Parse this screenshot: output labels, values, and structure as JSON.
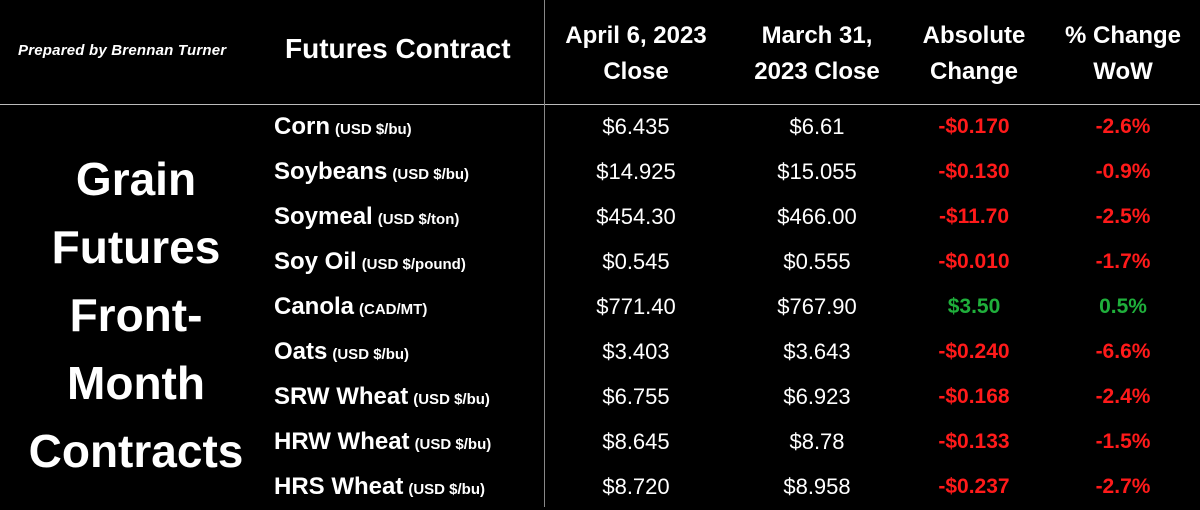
{
  "header": {
    "prepared_by": "Prepared by Brennan Turner",
    "futures_contract": "Futures Contract",
    "col_apr_line1": "April 6, 2023",
    "col_apr_line2": "Close",
    "col_mar_line1": "March 31,",
    "col_mar_line2": "2023 Close",
    "col_abs_line1": "Absolute",
    "col_abs_line2": "Change",
    "col_pct_line1": "% Change",
    "col_pct_line2": "WoW"
  },
  "left_title": {
    "line1": "Grain",
    "line2": "Futures",
    "line3": "Front-",
    "line4": "Month",
    "line5": "Contracts"
  },
  "colors": {
    "background": "#000000",
    "text": "#ffffff",
    "negative": "#ff1a1a",
    "positive": "#1faf3b"
  },
  "rows": [
    {
      "name": "Corn",
      "unit": "(USD $/bu)",
      "apr": "$6.435",
      "mar": "$6.61",
      "abs": "-$0.170",
      "pct": "-2.6%",
      "direction": "neg"
    },
    {
      "name": "Soybeans",
      "unit": "(USD $/bu)",
      "apr": "$14.925",
      "mar": "$15.055",
      "abs": "-$0.130",
      "pct": "-0.9%",
      "direction": "neg"
    },
    {
      "name": "Soymeal",
      "unit": "(USD $/ton)",
      "apr": "$454.30",
      "mar": "$466.00",
      "abs": "-$11.70",
      "pct": "-2.5%",
      "direction": "neg"
    },
    {
      "name": "Soy Oil",
      "unit": "(USD $/pound)",
      "apr": "$0.545",
      "mar": "$0.555",
      "abs": "-$0.010",
      "pct": "-1.7%",
      "direction": "neg"
    },
    {
      "name": "Canola",
      "unit": "(CAD/MT)",
      "apr": "$771.40",
      "mar": "$767.90",
      "abs": "$3.50",
      "pct": "0.5%",
      "direction": "pos"
    },
    {
      "name": "Oats",
      "unit": "(USD $/bu)",
      "apr": "$3.403",
      "mar": "$3.643",
      "abs": "-$0.240",
      "pct": "-6.6%",
      "direction": "neg"
    },
    {
      "name": "SRW Wheat",
      "unit": "(USD $/bu)",
      "apr": "$6.755",
      "mar": "$6.923",
      "abs": "-$0.168",
      "pct": "-2.4%",
      "direction": "neg"
    },
    {
      "name": "HRW Wheat",
      "unit": "(USD $/bu)",
      "apr": "$8.645",
      "mar": "$8.78",
      "abs": "-$0.133",
      "pct": "-1.5%",
      "direction": "neg"
    },
    {
      "name": "HRS Wheat",
      "unit": "(USD $/bu)",
      "apr": "$8.720",
      "mar": "$8.958",
      "abs": "-$0.237",
      "pct": "-2.7%",
      "direction": "neg"
    }
  ]
}
